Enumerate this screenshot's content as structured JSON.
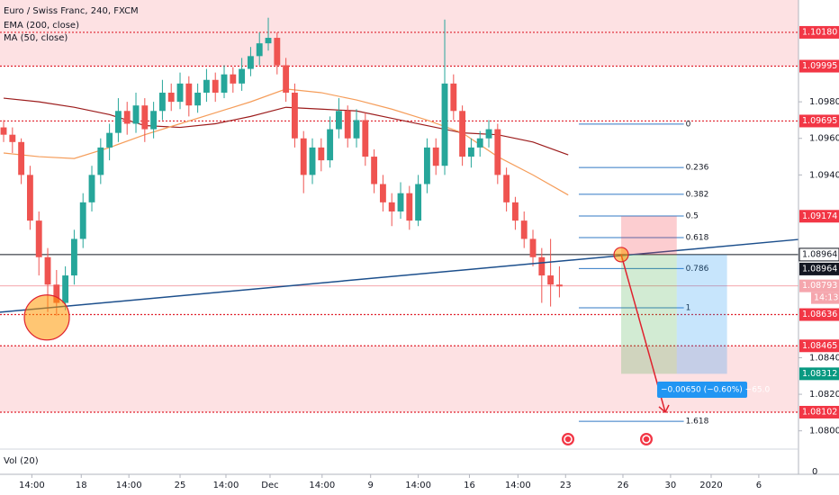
{
  "chart_data": {
    "type": "candlestick",
    "title": "Euro / Swiss Franc, 240, FXCM",
    "up_color": "#26a69a",
    "down_color": "#ef5350",
    "xlim": [
      -0.41,
      90.1
    ],
    "ylim": [
      1.07905,
      1.10357
    ],
    "yticks": [
      {
        "value": 1.098,
        "label": "1.09800"
      },
      {
        "value": 1.096,
        "label": "1.09600"
      },
      {
        "value": 1.094,
        "label": "1.09400"
      },
      {
        "value": 1.084,
        "label": "1.08400"
      },
      {
        "value": 1.082,
        "label": "1.08200"
      },
      {
        "value": 1.08,
        "label": "1.08000"
      }
    ],
    "xticks": [
      {
        "value": 3.2,
        "label": "14:00"
      },
      {
        "value": 8.8,
        "label": "18"
      },
      {
        "value": 14.2,
        "label": "14:00"
      },
      {
        "value": 20,
        "label": "25"
      },
      {
        "value": 25.2,
        "label": "14:00"
      },
      {
        "value": 30.2,
        "label": "Dec"
      },
      {
        "value": 36.1,
        "label": "14:00"
      },
      {
        "value": 41.6,
        "label": "9"
      },
      {
        "value": 47,
        "label": "14:00"
      },
      {
        "value": 52.8,
        "label": "16"
      },
      {
        "value": 58.3,
        "label": "14:00"
      },
      {
        "value": 63.7,
        "label": "23"
      },
      {
        "value": 70.2,
        "label": "26"
      },
      {
        "value": 75.6,
        "label": "30"
      },
      {
        "value": 80.2,
        "label": "2020"
      },
      {
        "value": 85.6,
        "label": "6"
      }
    ],
    "candles": [
      [
        1.0966,
        1.097,
        1.0958,
        1.0962
      ],
      [
        1.0962,
        1.0966,
        1.0952,
        1.0958
      ],
      [
        1.0958,
        1.096,
        1.0935,
        1.094
      ],
      [
        1.094,
        1.0945,
        1.091,
        1.0915
      ],
      [
        1.0915,
        1.092,
        1.0885,
        1.0895
      ],
      [
        1.0895,
        1.09,
        1.0865,
        1.088
      ],
      [
        1.088,
        1.0888,
        1.0863,
        1.087
      ],
      [
        1.087,
        1.089,
        1.0866,
        1.0885
      ],
      [
        1.0885,
        1.091,
        1.088,
        1.0905
      ],
      [
        1.0905,
        1.093,
        1.09,
        1.0925
      ],
      [
        1.0925,
        1.0945,
        1.092,
        1.094
      ],
      [
        1.094,
        1.096,
        1.0935,
        1.0955
      ],
      [
        1.0955,
        1.0968,
        1.0948,
        1.0963
      ],
      [
        1.0963,
        1.0982,
        1.0958,
        1.0975
      ],
      [
        1.0975,
        1.098,
        1.0962,
        1.0968
      ],
      [
        1.0968,
        1.0985,
        1.0963,
        1.0978
      ],
      [
        1.0978,
        1.0982,
        1.0958,
        1.0965
      ],
      [
        1.0965,
        1.098,
        1.096,
        1.0975
      ],
      [
        1.0975,
        1.0992,
        1.097,
        1.0985
      ],
      [
        1.0985,
        1.099,
        1.0975,
        1.098
      ],
      [
        1.098,
        1.0996,
        1.0976,
        1.099
      ],
      [
        1.099,
        1.0994,
        1.0972,
        1.0978
      ],
      [
        1.0978,
        1.099,
        1.0974,
        1.0985
      ],
      [
        1.0985,
        1.0998,
        1.098,
        1.0992
      ],
      [
        1.0992,
        1.0996,
        1.098,
        1.0985
      ],
      [
        1.0985,
        1.1,
        1.0982,
        1.0995
      ],
      [
        1.0995,
        1.0999,
        1.0985,
        1.099
      ],
      [
        1.099,
        1.1004,
        1.0986,
        1.0998
      ],
      [
        1.0998,
        1.101,
        1.0994,
        1.1005
      ],
      [
        1.1005,
        1.1018,
        1.1,
        1.1012
      ],
      [
        1.1012,
        1.1026,
        1.1008,
        1.1015
      ],
      [
        1.1015,
        1.1018,
        1.0995,
        1.1
      ],
      [
        1.1,
        1.1004,
        1.098,
        1.0985
      ],
      [
        1.0985,
        1.099,
        1.0955,
        1.096
      ],
      [
        1.096,
        1.0964,
        1.093,
        1.094
      ],
      [
        1.094,
        1.096,
        1.0935,
        1.0955
      ],
      [
        1.0955,
        1.096,
        1.0942,
        1.0948
      ],
      [
        1.0948,
        1.0972,
        1.0944,
        1.0965
      ],
      [
        1.0965,
        1.0982,
        1.096,
        1.0975
      ],
      [
        1.0975,
        1.0978,
        1.0955,
        1.096
      ],
      [
        1.096,
        1.0976,
        1.0955,
        1.097
      ],
      [
        1.097,
        1.0974,
        1.0945,
        1.095
      ],
      [
        1.095,
        1.0954,
        1.093,
        1.0935
      ],
      [
        1.0935,
        1.094,
        1.092,
        1.0925
      ],
      [
        1.0925,
        1.093,
        1.0912,
        1.092
      ],
      [
        1.092,
        1.0936,
        1.0916,
        1.093
      ],
      [
        1.093,
        1.0934,
        1.091,
        1.0915
      ],
      [
        1.0915,
        1.094,
        1.0912,
        1.0935
      ],
      [
        1.0935,
        1.096,
        1.093,
        1.0955
      ],
      [
        1.0955,
        1.096,
        1.094,
        1.0945
      ],
      [
        1.0945,
        1.1025,
        1.094,
        1.099
      ],
      [
        1.099,
        1.0995,
        1.097,
        1.0975
      ],
      [
        1.0975,
        1.0978,
        1.0945,
        1.095
      ],
      [
        1.095,
        1.096,
        1.0944,
        1.0955
      ],
      [
        1.0955,
        1.0964,
        1.095,
        1.096
      ],
      [
        1.096,
        1.097,
        1.0955,
        1.0965
      ],
      [
        1.0965,
        1.0968,
        1.0935,
        1.094
      ],
      [
        1.094,
        1.0944,
        1.092,
        1.0925
      ],
      [
        1.0925,
        1.0928,
        1.091,
        1.0915
      ],
      [
        1.0915,
        1.092,
        1.09,
        1.0905
      ],
      [
        1.0905,
        1.091,
        1.089,
        1.0895
      ],
      [
        1.0895,
        1.09,
        1.087,
        1.0885
      ],
      [
        1.0885,
        1.0905,
        1.0868,
        1.088
      ],
      [
        1.088,
        1.089,
        1.0873,
        1.0879
      ]
    ],
    "indicators": [
      {
        "name": "EMA (200, close)",
        "color": "#9c1c1c",
        "x": [
          0,
          4,
          8,
          12,
          16,
          20,
          24,
          28,
          32,
          36,
          40,
          44,
          48,
          52,
          56,
          60,
          64
        ],
        "values": [
          1.0982,
          1.098,
          1.0977,
          1.0973,
          1.0967,
          1.0966,
          1.0968,
          1.0972,
          1.0977,
          1.0976,
          1.0975,
          1.0971,
          1.0967,
          1.0963,
          1.0962,
          1.0958,
          1.0951
        ]
      },
      {
        "name": "MA (50, close)",
        "color": "#f59d5a",
        "x": [
          0,
          4,
          8,
          12,
          16,
          20,
          24,
          28,
          32,
          36,
          40,
          44,
          48,
          52,
          56,
          60,
          64
        ],
        "values": [
          1.0952,
          1.095,
          1.0949,
          1.0955,
          1.0962,
          1.0968,
          1.0974,
          1.098,
          1.0987,
          1.0985,
          1.0981,
          1.0976,
          1.097,
          1.0963,
          1.095,
          1.094,
          1.0929
        ]
      }
    ],
    "zones": [
      [
        1.09995,
        1.10357
      ],
      [
        1.08102,
        1.08465
      ]
    ],
    "price_labels": [
      {
        "value": 1.1018,
        "label": "1.10180",
        "style": "red",
        "line": "dotted"
      },
      {
        "value": 1.09995,
        "label": "1.09995",
        "style": "red",
        "line": "dotted"
      },
      {
        "value": 1.09695,
        "label": "1.09695",
        "style": "red",
        "line": "dotted"
      },
      {
        "value": 1.09174,
        "label": "1.09174",
        "style": "red"
      },
      {
        "value": 1.08964,
        "label": "1.08964",
        "style": "outline",
        "line": "solid"
      },
      {
        "value": 1.08964,
        "label": "1.08964",
        "style": "dark"
      },
      {
        "value": 1.08793,
        "label": "1.08793",
        "style": "pink",
        "line": "thin",
        "sub": "14:13"
      },
      {
        "value": 1.08636,
        "label": "1.08636",
        "style": "red",
        "line": "dotted"
      },
      {
        "value": 1.08465,
        "label": "1.08465",
        "style": "red",
        "line": "dotted"
      },
      {
        "value": 1.08312,
        "label": "1.08312",
        "style": "green"
      },
      {
        "value": 1.08102,
        "label": "1.08102",
        "style": "red",
        "line": "dotted"
      }
    ],
    "trendline": {
      "x": [
        -0.41,
        90.1
      ],
      "y": [
        1.08649,
        1.09047
      ],
      "color": "#1c4f8c"
    },
    "fib": {
      "x": [
        65.2,
        77.1
      ],
      "range": [
        1.09678,
        1.08673
      ],
      "levels": [
        0,
        0.236,
        0.382,
        0.5,
        0.618,
        0.786,
        1,
        1.618
      ],
      "color": "#3179c4"
    },
    "position": {
      "x": [
        70,
        76.3,
        82
      ],
      "entry": 1.08964,
      "stop": 1.09174,
      "target": 1.08312,
      "label": "−0.00650 (−0.60%) −65.0"
    },
    "arrow": {
      "x": [
        70,
        75
      ],
      "y": [
        1.08964,
        1.08102
      ]
    },
    "highlights": [
      {
        "x": 4.9,
        "y": 1.0862
      },
      {
        "x": 70,
        "y": 1.08964
      }
    ],
    "volume_title": "Vol (20)",
    "volume_ylabel": 0
  }
}
